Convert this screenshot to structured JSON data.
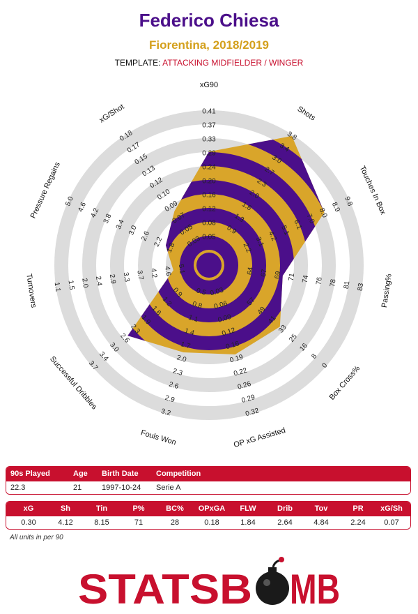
{
  "header": {
    "player": "Federico Chiesa",
    "team_season": "Fiorentina, 2018/2019",
    "template_label": "TEMPLATE:",
    "template_value": "ATTACKING MIDFIELDER / WINGER"
  },
  "colors": {
    "purple": "#4b0f8a",
    "gold": "#d9a52a",
    "ring": "#dcdcdc",
    "red": "#c8102e"
  },
  "chart_data": {
    "type": "radar",
    "axes": [
      {
        "label": "xG90",
        "ticks": [
          "0.05",
          "0.08",
          "0.12",
          "0.16",
          "0.20",
          "0.24",
          "0.29",
          "0.33",
          "0.37",
          "0.41"
        ],
        "value": 0.3,
        "min": 0.03,
        "max": 0.41
      },
      {
        "label": "Shots",
        "ticks": [
          "0.9",
          "1.3",
          "1.6",
          "2.0",
          "2.3",
          "2.7",
          "3.0",
          "3.4",
          "3.8"
        ],
        "value": 4.12,
        "min": 0.5,
        "max": 3.8
      },
      {
        "label": "Touches In Box",
        "ticks": [
          "2.2",
          "3.1",
          "4.2",
          "5.1",
          "6.1",
          "7.0",
          "8.0",
          "8.9",
          "9.8"
        ],
        "value": 8.15,
        "min": 1.2,
        "max": 9.8
      },
      {
        "label": "Passing%",
        "ticks": [
          "64",
          "67",
          "69",
          "71",
          "74",
          "76",
          "78",
          "81",
          "83"
        ],
        "value": 71,
        "min": 62,
        "max": 83
      },
      {
        "label": "Box Cross%",
        "ticks": [
          "57",
          "49",
          "41",
          "33",
          "25",
          "16",
          "8",
          "0"
        ],
        "value": 28,
        "min": 65,
        "max": 0
      },
      {
        "label": "OP xG Assisted",
        "ticks": [
          "0.03",
          "0.06",
          "0.09",
          "0.12",
          "0.16",
          "0.19",
          "0.22",
          "0.26",
          "0.29",
          "0.32"
        ],
        "value": 0.18,
        "min": 0.0,
        "max": 0.32
      },
      {
        "label": "Fouls Won",
        "ticks": [
          "0.5",
          "0.8",
          "1.1",
          "1.4",
          "1.7",
          "2.0",
          "2.3",
          "2.6",
          "2.9",
          "3.2"
        ],
        "value": 1.84,
        "min": 0.2,
        "max": 3.2
      },
      {
        "label": "Successful Dribbles",
        "ticks": [
          "0.9",
          "1.2",
          "1.6",
          "1.9",
          "2.3",
          "2.6",
          "3.0",
          "3.4",
          "3.7"
        ],
        "value": 2.64,
        "min": 0.5,
        "max": 3.7
      },
      {
        "label": "Turnovers",
        "ticks": [
          "5.1",
          "4.6",
          "4.2",
          "3.7",
          "3.3",
          "2.9",
          "2.4",
          "2.0",
          "1.5",
          "1.1"
        ],
        "value": 4.84,
        "min": 5.5,
        "max": 1.1
      },
      {
        "label": "Pressure Regains",
        "ticks": [
          "1.8",
          "2.2",
          "2.6",
          "3.0",
          "3.4",
          "3.8",
          "4.2",
          "4.6",
          "5.0"
        ],
        "value": 2.24,
        "min": 1.4,
        "max": 5.0
      },
      {
        "label": "xG/Shot",
        "ticks": [
          "0.03",
          "0.05",
          "0.07",
          "0.09",
          "0.10",
          "0.12",
          "0.13",
          "0.15",
          "0.17",
          "0.18"
        ],
        "value": 0.07,
        "min": 0.01,
        "max": 0.18
      }
    ]
  },
  "info_table": {
    "headers": [
      "90s Played",
      "Age",
      "Birth Date",
      "Competition"
    ],
    "values": [
      "22.3",
      "21",
      "1997-10-24",
      "Serie A"
    ]
  },
  "stats_table": {
    "headers": [
      "xG",
      "Sh",
      "Tin",
      "P%",
      "BC%",
      "OPxGA",
      "FLW",
      "Drib",
      "Tov",
      "PR",
      "xG/Sh"
    ],
    "values": [
      "0.30",
      "4.12",
      "8.15",
      "71",
      "28",
      "0.18",
      "1.84",
      "2.64",
      "4.84",
      "2.24",
      "0.07"
    ]
  },
  "footnote": "All units in per 90",
  "logo": {
    "left": "STATSB",
    "right": "MB"
  }
}
